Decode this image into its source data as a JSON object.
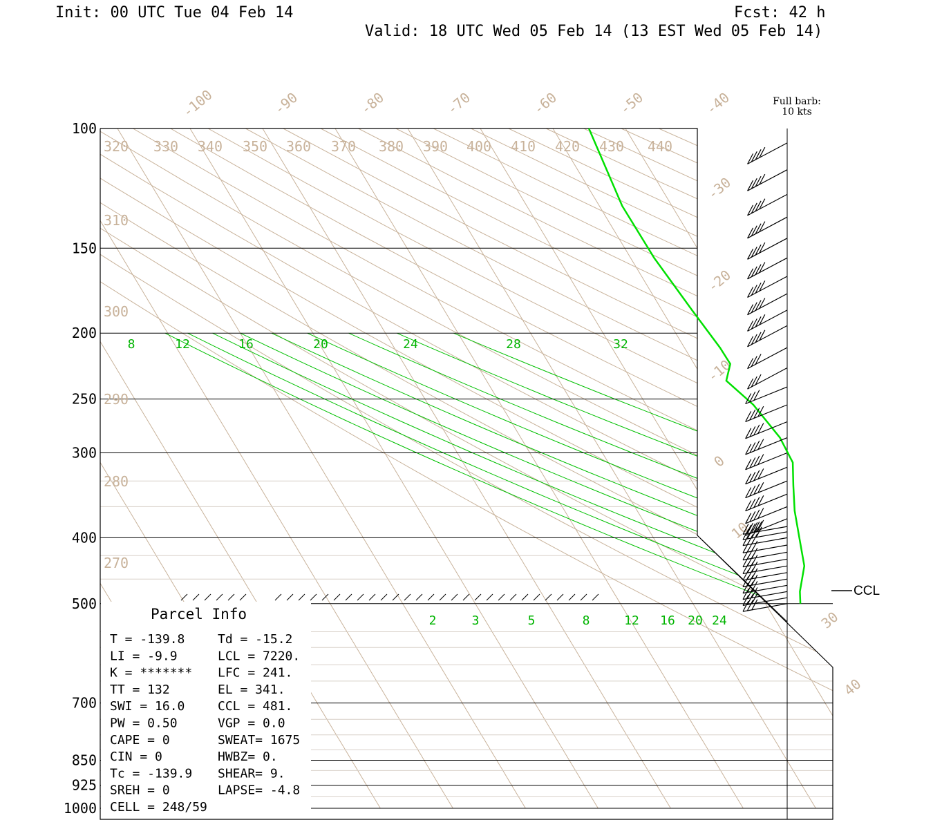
{
  "header": {
    "init": "Init: 00 UTC Tue 04 Feb 14",
    "fcst": "Fcst:   42 h",
    "valid": "Valid: 18 UTC Wed 05 Feb 14 (13 EST Wed 05 Feb 14)"
  },
  "colors": {
    "axes": "#000000",
    "isotherm": "#c8b29a",
    "dry_adiabat": "#c8b29a",
    "moist_adiabat": "#00c000",
    "mixing_ratio": "#00c000",
    "profile": "#00e000",
    "barb": "#000000"
  },
  "barb_legend": {
    "line1": "Full barb:",
    "line2": "10 kts"
  },
  "ccl_marker": {
    "label": "CCL"
  },
  "parcel_info": {
    "title": "Parcel Info",
    "rows": [
      [
        "T  =  -139.8",
        "Td = -15.2"
      ],
      [
        "LI =    -9.9",
        "LCL = 7220."
      ],
      [
        "K  = *******",
        "LFC =  241."
      ],
      [
        "TT =     132",
        "EL  =  341."
      ],
      [
        "SWI =   16.0",
        "CCL =  481."
      ],
      [
        "PW =    0.50",
        "VGP =   0.0"
      ],
      [
        "CAPE =     0",
        "SWEAT= 1675"
      ],
      [
        "CIN =      0",
        "HWBZ=    0."
      ],
      [
        "Tc = -139.9",
        "SHEAR=   9."
      ],
      [
        "SREH =     0",
        "LAPSE= -4.8"
      ],
      [
        "CELL = 248/59",
        ""
      ]
    ]
  },
  "chart_data": {
    "type": "line",
    "title": "",
    "xlabel": "",
    "ylabel": "",
    "pressure_levels": [
      100,
      150,
      200,
      250,
      300,
      400,
      500,
      700,
      850,
      925,
      1000
    ],
    "pressure_labels": [
      "100",
      "150",
      "200",
      "250",
      "300",
      "400",
      "500",
      "700",
      "850",
      "925",
      "1000"
    ],
    "isotherm_labels": [
      {
        "t": -100,
        "label": "-100"
      },
      {
        "t": -90,
        "label": "-90"
      },
      {
        "t": -80,
        "label": "-80"
      },
      {
        "t": -70,
        "label": "-70"
      },
      {
        "t": -60,
        "label": "-60"
      },
      {
        "t": -50,
        "label": "-50"
      },
      {
        "t": -40,
        "label": "-40"
      },
      {
        "t": -30,
        "label": "-30"
      },
      {
        "t": -20,
        "label": "-20"
      },
      {
        "t": -10,
        "label": "-10"
      },
      {
        "t": 0,
        "label": "0"
      },
      {
        "t": 10,
        "label": "10"
      },
      {
        "t": 30,
        "label": "30"
      },
      {
        "t": 40,
        "label": "40"
      }
    ],
    "theta_labels_top": [
      "320",
      "330",
      "340",
      "350",
      "360",
      "370",
      "380",
      "390",
      "400",
      "410",
      "420",
      "430",
      "440"
    ],
    "theta_labels_left": [
      "310",
      "300",
      "290",
      "280",
      "270"
    ],
    "moist_adiabat_labels": [
      "8",
      "12",
      "16",
      "20",
      "24",
      "28",
      "32"
    ],
    "mixing_ratio_labels": [
      "2",
      "3",
      "5",
      "8",
      "12",
      "16",
      "20",
      "24"
    ],
    "profile": [
      {
        "p": 100,
        "t": -40
      },
      {
        "p": 130,
        "t": -36
      },
      {
        "p": 155,
        "t": -30
      },
      {
        "p": 185,
        "t": -22
      },
      {
        "p": 210,
        "t": -16
      },
      {
        "p": 222,
        "t": -14
      },
      {
        "p": 235,
        "t": -17
      },
      {
        "p": 255,
        "t": -10
      },
      {
        "p": 285,
        "t": -4
      },
      {
        "p": 310,
        "t": -2
      },
      {
        "p": 335,
        "t": -4
      },
      {
        "p": 365,
        "t": -6
      },
      {
        "p": 400,
        "t": -7
      },
      {
        "p": 440,
        "t": -8
      },
      {
        "p": 480,
        "t": -12
      },
      {
        "p": 500,
        "t": -13
      }
    ],
    "wind_barbs_pressure": [
      105,
      115,
      125,
      135,
      145,
      155,
      165,
      175,
      185,
      195,
      210,
      225,
      240,
      255,
      270,
      285,
      300,
      315,
      330,
      345,
      360,
      375,
      385,
      392,
      400,
      410,
      420,
      430,
      440,
      450,
      460,
      470,
      480,
      490,
      500
    ]
  }
}
